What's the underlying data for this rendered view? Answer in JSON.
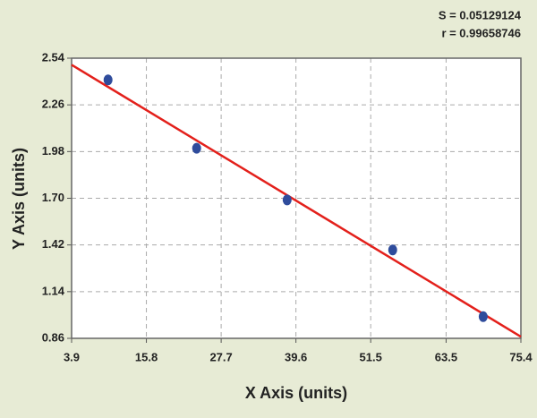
{
  "chart_data": {
    "type": "scatter",
    "annotations": [
      "S = 0.05129124",
      "r = 0.99658746"
    ],
    "x_label": "X Axis (units)",
    "y_label": "Y Axis (units)",
    "x": [
      9.7,
      23.8,
      38.2,
      55.0,
      69.4
    ],
    "values": [
      2.41,
      2.0,
      1.69,
      1.39,
      0.99
    ],
    "color": "#2f4c9c",
    "fit_line": {
      "x": [
        3.9,
        75.4
      ],
      "y": [
        2.5,
        0.87
      ],
      "color": "#e3201b"
    },
    "xlim": [
      3.9,
      75.4
    ],
    "ylim": [
      0.86,
      2.54
    ],
    "xticks": [
      3.9,
      15.8,
      27.7,
      39.6,
      51.5,
      63.5,
      75.4
    ],
    "yticks": [
      0.86,
      1.14,
      1.42,
      {
        "value": 1.7,
        "label": "1.70"
      },
      1.98,
      2.26,
      2.54
    ],
    "grid": true
  }
}
